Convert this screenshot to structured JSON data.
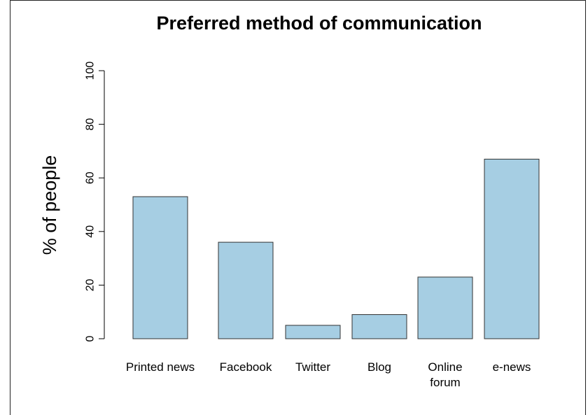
{
  "chart_data": {
    "type": "bar",
    "title": "Preferred method of communication",
    "xlabel": "",
    "ylabel": "% of people",
    "categories": [
      [
        "Printed news"
      ],
      [
        "Facebook"
      ],
      [
        "Twitter"
      ],
      [
        "Blog"
      ],
      [
        "Online",
        "forum"
      ],
      [
        "e-news"
      ]
    ],
    "values": [
      53,
      36,
      5,
      9,
      23,
      67
    ],
    "ylim": [
      0,
      100
    ],
    "yticks": [
      "0",
      "20",
      "40",
      "60",
      "80",
      "100"
    ],
    "grid": false,
    "colors": {
      "bar_fill": "#a6cee3",
      "bar_stroke": "#333333",
      "axis": "#000000"
    }
  }
}
